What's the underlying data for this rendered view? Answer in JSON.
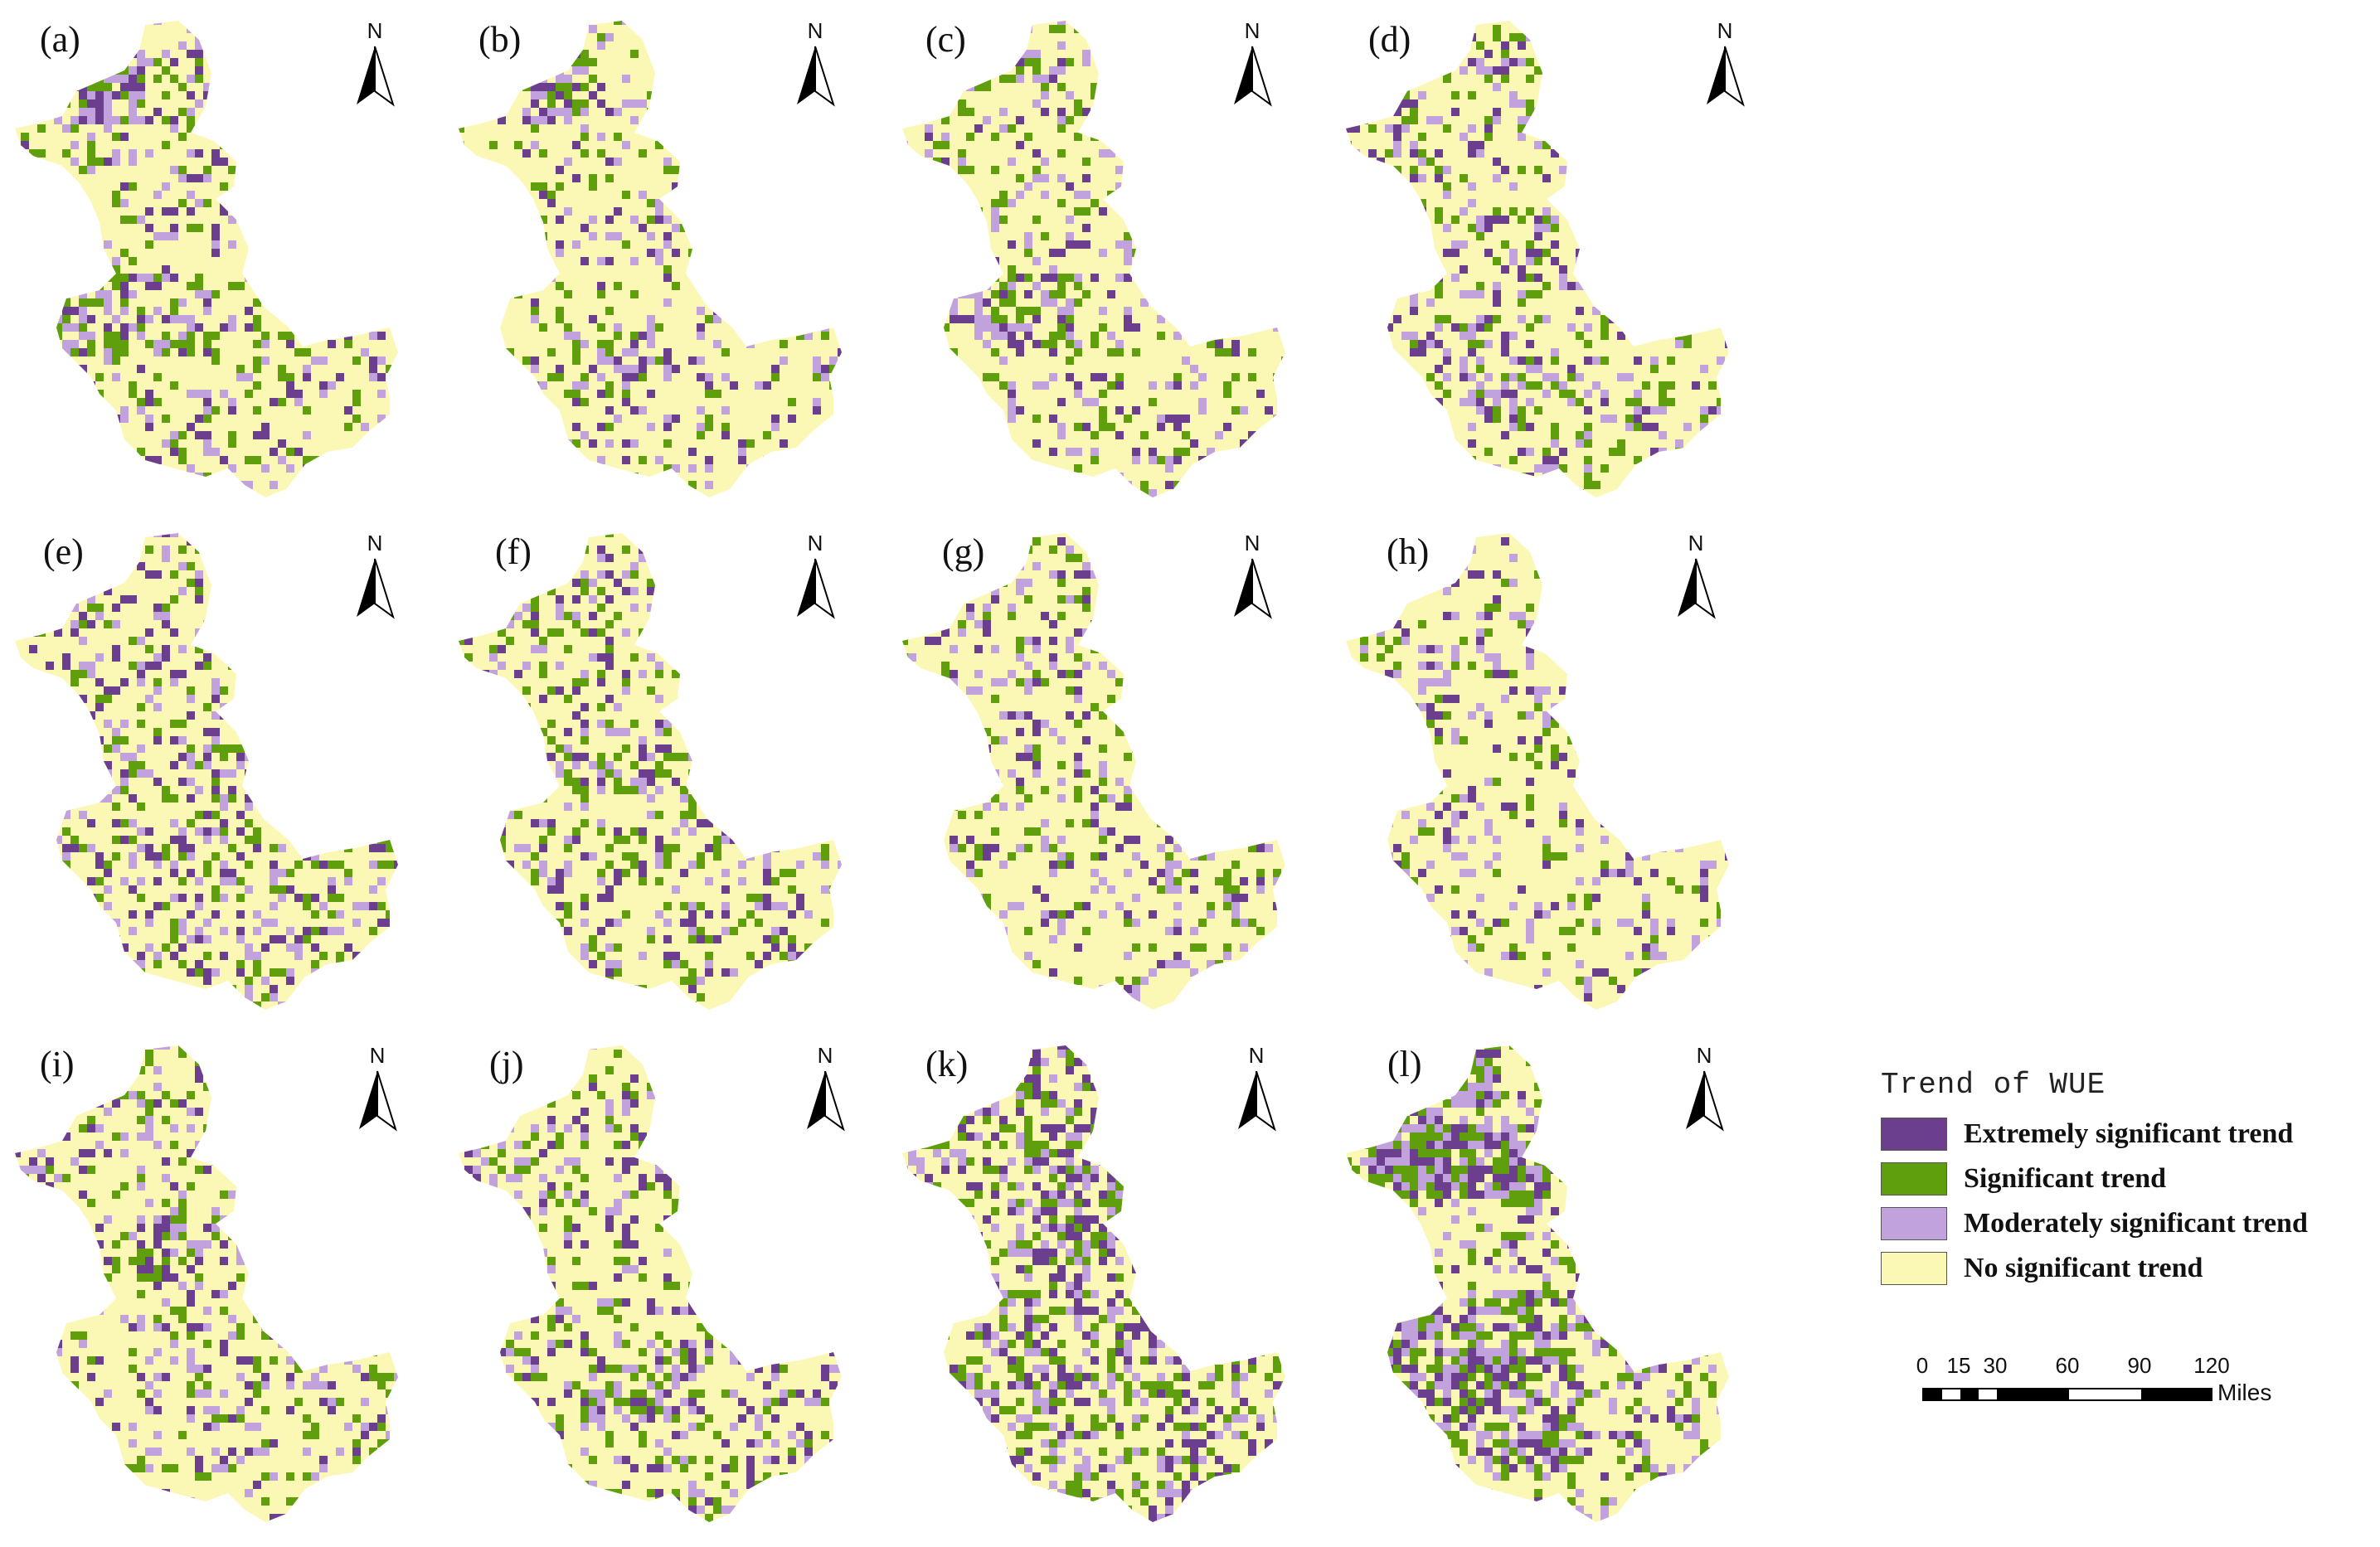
{
  "panels": [
    "(a)",
    "(b)",
    "(c)",
    "(d)",
    "(e)",
    "(f)",
    "(g)",
    "(h)",
    "(i)",
    "(j)",
    "(k)",
    "(l)"
  ],
  "north_label": "N",
  "legend": {
    "title": "Trend of WUE",
    "items": [
      {
        "label": "Extremely significant trend",
        "color": "#6b3f8e"
      },
      {
        "label": "Significant trend",
        "color": "#5f9e0c"
      },
      {
        "label": "Moderately significant trend",
        "color": "#c1a2dc"
      },
      {
        "label": "No significant trend",
        "color": "#fbf8b6"
      }
    ]
  },
  "scale_bar": {
    "ticks": [
      "0",
      "15",
      "30",
      "60",
      "90",
      "120"
    ],
    "unit": "Miles"
  },
  "colors": {
    "extreme": "#6b3f8e",
    "significant": "#5f9e0c",
    "moderate": "#c1a2dc",
    "none": "#fbf8b6"
  }
}
